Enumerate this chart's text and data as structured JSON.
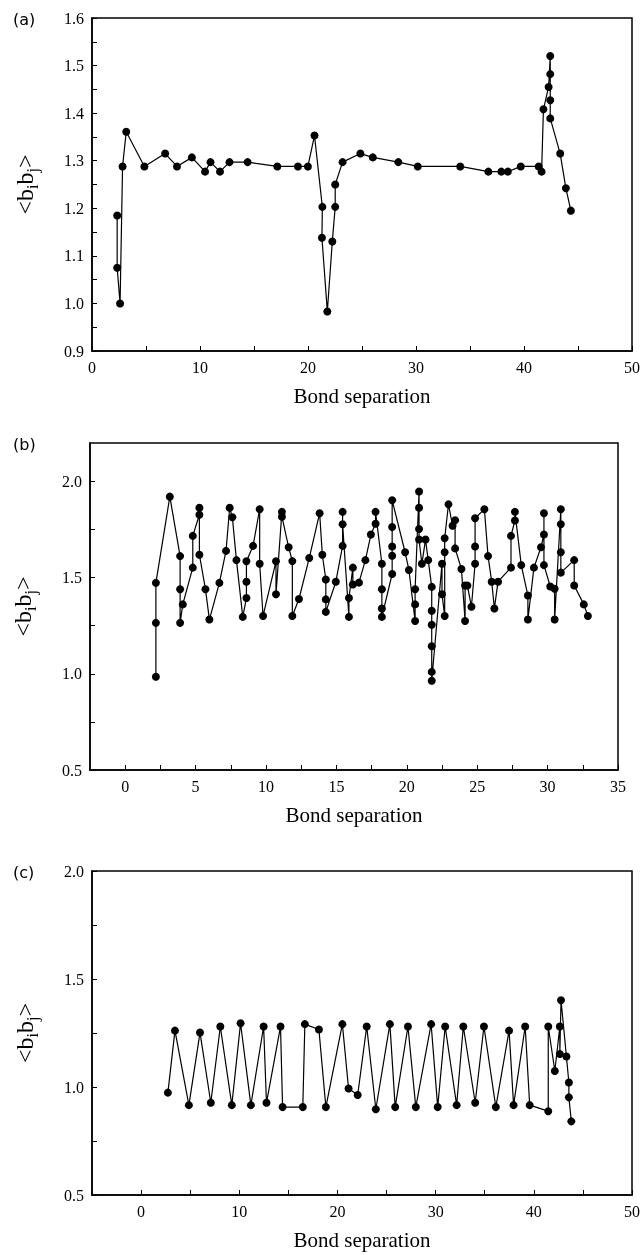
{
  "chart_data": [
    {
      "type": "line",
      "title": "(a)",
      "xlabel": "Bond separation",
      "ylabel": "<b$_{i}$b$_{j}$>",
      "color": "#000000",
      "marker": "circle",
      "line_style": "solid",
      "grid": false,
      "xlim": [
        0,
        50
      ],
      "xticks": [
        0,
        {
          "value": 5,
          "label": null
        },
        10,
        {
          "value": 15,
          "label": null
        },
        20,
        {
          "value": 25,
          "label": null
        },
        30,
        {
          "value": 35,
          "label": null
        },
        40,
        {
          "value": 45,
          "label": null
        },
        50
      ],
      "ylim": [
        0.9,
        1.6
      ],
      "yticks": [
        0.9,
        {
          "value": 0.95,
          "label": null
        },
        {
          "value": 1,
          "label": "1.0"
        },
        {
          "value": 1.05,
          "label": null
        },
        1.1,
        {
          "value": 1.15,
          "label": null
        },
        1.2,
        {
          "value": 1.25,
          "label": null
        },
        1.3,
        {
          "value": 1.35,
          "label": null
        },
        1.4,
        {
          "value": 1.45,
          "label": null
        },
        1.5,
        {
          "value": 1.55,
          "label": null
        },
        1.6
      ],
      "x": [
        2.33,
        2.33,
        2.6,
        2.83,
        3.17,
        4.85,
        6.77,
        7.87,
        9.25,
        10.47,
        10.97,
        11.85,
        12.73,
        14.41,
        17.16,
        19.07,
        19.99,
        20.6,
        21.33,
        21.29,
        21.79,
        22.25,
        22.52,
        22.52,
        23.2,
        24.85,
        26.0,
        28.36,
        30.16,
        34.1,
        36.7,
        37.9,
        38.5,
        39.7,
        41.36,
        41.63,
        41.8,
        42.28,
        42.43,
        42.43,
        42.43,
        42.43,
        43.35,
        43.88,
        44.34
      ],
      "values": [
        1.185,
        1.075,
        1.0,
        1.288,
        1.361,
        1.288,
        1.315,
        1.288,
        1.307,
        1.277,
        1.297,
        1.277,
        1.297,
        1.297,
        1.288,
        1.288,
        1.288,
        1.353,
        1.203,
        1.138,
        0.983,
        1.13,
        1.203,
        1.25,
        1.297,
        1.315,
        1.307,
        1.297,
        1.288,
        1.288,
        1.277,
        1.277,
        1.277,
        1.288,
        1.288,
        1.277,
        1.408,
        1.455,
        1.52,
        1.482,
        1.427,
        1.389,
        1.315,
        1.242,
        1.195
      ]
    },
    {
      "type": "line",
      "title": "(b)",
      "xlabel": "Bond separation",
      "ylabel": "<b$_{i}$b$_{j}$>",
      "color": "#000000",
      "marker": "circle",
      "line_style": "solid",
      "grid": false,
      "xlim": [
        -2.5,
        35
      ],
      "xticks": [
        0,
        {
          "value": 2.5,
          "label": null
        },
        5,
        {
          "value": 7.5,
          "label": null
        },
        10,
        {
          "value": 12.5,
          "label": null
        },
        15,
        {
          "value": 17.5,
          "label": null
        },
        20,
        {
          "value": 22.5,
          "label": null
        },
        25,
        {
          "value": 27.5,
          "label": null
        },
        30,
        {
          "value": 32.5,
          "label": null
        },
        35
      ],
      "ylim": [
        0.5,
        2.2
      ],
      "yticks": [
        0.5,
        {
          "value": 0.75,
          "label": null
        },
        {
          "value": 1,
          "label": "1.0"
        },
        {
          "value": 1.25,
          "label": null
        },
        1.5,
        {
          "value": 1.75,
          "label": null
        },
        {
          "value": 2,
          "label": "2.0"
        }
      ],
      "x": [
        2.18,
        2.18,
        2.18,
        3.17,
        3.9,
        3.9,
        3.9,
        4.09,
        4.8,
        4.8,
        5.27,
        5.27,
        5.27,
        5.7,
        5.98,
        6.69,
        7.16,
        7.42,
        7.61,
        7.9,
        8.35,
        8.61,
        8.61,
        8.61,
        9.08,
        9.55,
        9.55,
        9.79,
        10.71,
        10.71,
        11.13,
        11.13,
        11.61,
        11.87,
        11.87,
        12.34,
        13.07,
        13.81,
        14.0,
        14.25,
        14.25,
        14.25,
        14.96,
        15.44,
        15.44,
        15.44,
        15.89,
        15.89,
        16.17,
        16.17,
        16.6,
        17.06,
        17.45,
        17.78,
        17.78,
        18.23,
        18.23,
        18.23,
        18.23,
        18.96,
        18.96,
        18.96,
        18.96,
        18.96,
        19.88,
        20.15,
        20.59,
        20.59,
        20.59,
        20.87,
        20.87,
        20.87,
        20.87,
        21.07,
        21.33,
        21.52,
        21.77,
        21.77,
        21.77,
        21.77,
        21.77,
        21.77,
        22.5,
        22.5,
        22.69,
        22.69,
        22.69,
        22.96,
        23.25,
        23.43,
        23.43,
        23.88,
        24.14,
        24.14,
        24.3,
        24.59,
        24.85,
        24.85,
        24.85,
        25.51,
        25.77,
        26.03,
        26.22,
        26.48,
        27.4,
        27.4,
        27.68,
        27.68,
        28.13,
        28.6,
        28.6,
        29.03,
        29.53,
        29.74,
        29.74,
        29.74,
        30.19,
        30.5,
        30.5,
        30.94,
        30.94,
        30.94,
        30.94,
        31.89,
        31.89,
        32.57,
        32.86
      ],
      "values": [
        0.985,
        1.265,
        1.473,
        1.921,
        1.612,
        1.44,
        1.265,
        1.361,
        1.552,
        1.717,
        1.827,
        1.863,
        1.619,
        1.44,
        1.282,
        1.473,
        1.639,
        1.863,
        1.814,
        1.591,
        1.296,
        1.394,
        1.479,
        1.585,
        1.665,
        1.856,
        1.572,
        1.301,
        1.585,
        1.414,
        1.842,
        1.817,
        1.658,
        1.586,
        1.301,
        1.389,
        1.602,
        1.835,
        1.619,
        1.49,
        1.387,
        1.322,
        1.479,
        1.665,
        1.842,
        1.778,
        1.296,
        1.394,
        1.552,
        1.464,
        1.474,
        1.591,
        1.724,
        1.78,
        1.842,
        1.572,
        1.44,
        1.34,
        1.296,
        1.519,
        1.614,
        1.662,
        1.763,
        1.902,
        1.632,
        1.54,
        1.275,
        1.361,
        1.44,
        1.948,
        1.863,
        1.753,
        1.698,
        1.572,
        1.698,
        1.591,
        1.452,
        1.328,
        1.255,
        1.143,
        1.01,
        0.964,
        1.572,
        1.414,
        1.301,
        1.632,
        1.705,
        1.881,
        1.77,
        1.798,
        1.652,
        1.545,
        1.275,
        1.459,
        1.459,
        1.349,
        1.572,
        1.662,
        1.809,
        1.856,
        1.612,
        1.479,
        1.34,
        1.479,
        1.552,
        1.717,
        1.797,
        1.842,
        1.565,
        1.407,
        1.282,
        1.552,
        1.658,
        1.724,
        1.835,
        1.565,
        1.454,
        1.442,
        1.282,
        1.856,
        1.778,
        1.632,
        1.526,
        1.591,
        1.459,
        1.361,
        1.301
      ]
    },
    {
      "type": "line",
      "title": "(c)",
      "xlabel": "Bond separation",
      "ylabel": "<b$_{i}$b$_{j}$>",
      "color": "#000000",
      "marker": "circle",
      "line_style": "solid",
      "grid": false,
      "xlim": [
        -5,
        50
      ],
      "xticks": [
        0,
        {
          "value": 5,
          "label": null
        },
        10,
        {
          "value": 15,
          "label": null
        },
        20,
        {
          "value": 25,
          "label": null
        },
        30,
        {
          "value": 35,
          "label": null
        },
        40,
        {
          "value": 45,
          "label": null
        },
        50
      ],
      "ylim": [
        0.5,
        2.0
      ],
      "yticks": [
        0.5,
        {
          "value": 0.75,
          "label": null
        },
        {
          "value": 1,
          "label": "1.0"
        },
        {
          "value": 1.25,
          "label": null
        },
        1.5,
        {
          "value": 1.75,
          "label": null
        },
        {
          "value": 2,
          "label": "2.0"
        }
      ],
      "x": [
        2.73,
        3.45,
        4.87,
        6.0,
        7.1,
        8.07,
        9.24,
        10.13,
        11.18,
        12.48,
        12.77,
        14.2,
        14.41,
        16.47,
        16.68,
        18.11,
        18.82,
        20.5,
        21.13,
        22.06,
        22.98,
        23.91,
        25.34,
        25.88,
        27.18,
        27.98,
        29.54,
        30.21,
        30.97,
        32.14,
        32.82,
        34.03,
        34.92,
        36.13,
        37.48,
        37.94,
        39.12,
        39.58,
        41.47,
        41.47,
        42.14,
        42.65,
        42.65,
        42.77,
        43.32,
        43.57,
        43.57,
        43.82
      ],
      "values": [
        0.974,
        1.261,
        0.916,
        1.252,
        0.927,
        1.28,
        0.916,
        1.295,
        0.916,
        1.28,
        0.927,
        1.28,
        0.907,
        0.907,
        1.291,
        1.266,
        0.907,
        1.291,
        0.993,
        0.963,
        1.28,
        0.897,
        1.291,
        0.907,
        1.28,
        0.907,
        1.291,
        0.907,
        1.28,
        0.916,
        1.28,
        0.927,
        1.28,
        0.907,
        1.261,
        0.916,
        1.28,
        0.916,
        0.888,
        1.28,
        1.074,
        1.28,
        1.153,
        1.402,
        1.141,
        1.021,
        0.952,
        0.841
      ]
    }
  ]
}
